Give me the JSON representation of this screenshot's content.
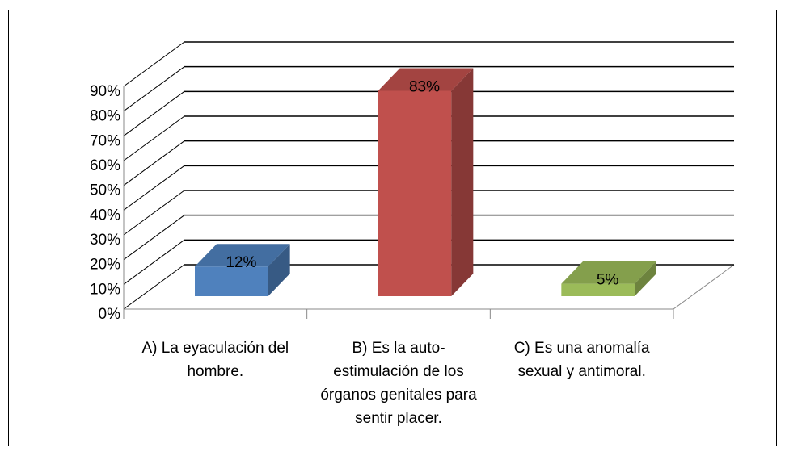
{
  "chart_data": {
    "type": "bar3d",
    "categories": [
      "A) La eyaculación del hombre.",
      "B) Es la auto-estimulación de los órganos genitales para sentir placer.",
      "C) Es una anomalía sexual y antimoral."
    ],
    "values": [
      12,
      83,
      5
    ],
    "value_labels": [
      "12%",
      "83%",
      "5%"
    ],
    "colors": [
      "#4f81bd",
      "#c0504d",
      "#9bbb59"
    ],
    "ylim": [
      0,
      90
    ],
    "yticks": [
      {
        "value": 0,
        "label": "0%"
      },
      {
        "value": 10,
        "label": "10%"
      },
      {
        "value": 20,
        "label": "20%"
      },
      {
        "value": 30,
        "label": "30%"
      },
      {
        "value": 40,
        "label": "40%"
      },
      {
        "value": 50,
        "label": "50%"
      },
      {
        "value": 60,
        "label": "60%"
      },
      {
        "value": 70,
        "label": "70%"
      },
      {
        "value": 80,
        "label": "80%"
      },
      {
        "value": 90,
        "label": "90%"
      }
    ],
    "grid": true
  }
}
